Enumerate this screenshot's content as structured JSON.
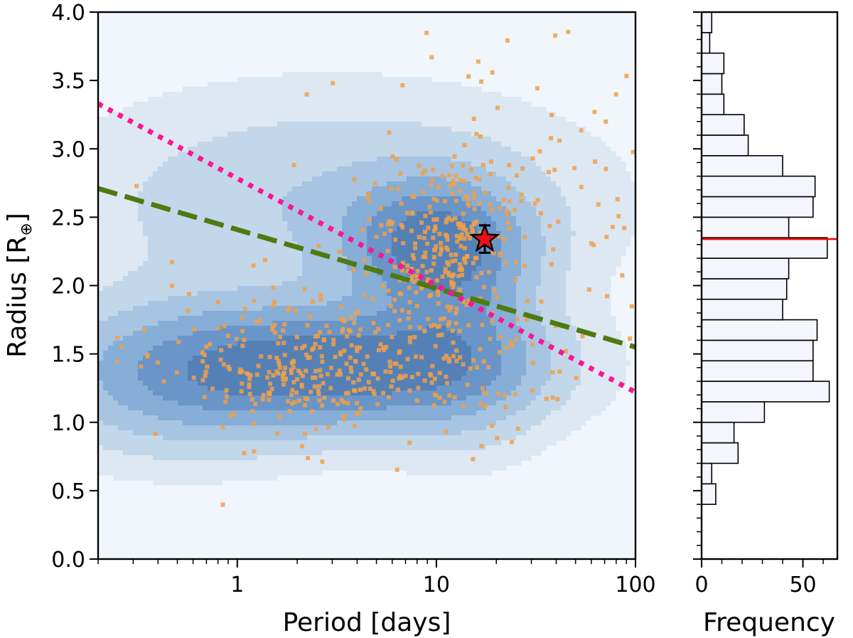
{
  "chart_data": [
    {
      "type": "scatter",
      "title": "",
      "xlabel": "Period [days]",
      "ylabel_main": "Radius [R",
      "ylabel_sub": "⊕",
      "ylabel_close": "]",
      "xscale": "log",
      "xlim": [
        0.2,
        100
      ],
      "ylim": [
        0.0,
        4.0
      ],
      "xticks": [
        {
          "value": 1,
          "label": "1"
        },
        {
          "value": 10,
          "label": "10"
        },
        {
          "value": 100,
          "label": "100"
        }
      ],
      "yticks": [
        {
          "value": 0.0,
          "label": "0.0"
        },
        {
          "value": 0.5,
          "label": "0.5"
        },
        {
          "value": 1.0,
          "label": "1.0"
        },
        {
          "value": 1.5,
          "label": "1.5"
        },
        {
          "value": 2.0,
          "label": "2.0"
        },
        {
          "value": 2.5,
          "label": "2.5"
        },
        {
          "value": 3.0,
          "label": "3.0"
        },
        {
          "value": 3.5,
          "label": "3.5"
        },
        {
          "value": 4.0,
          "label": "4.0"
        }
      ],
      "density_levels": [
        {
          "level": 1,
          "color": "#dde8f3"
        },
        {
          "level": 2,
          "color": "#c3d7ea"
        },
        {
          "level": 3,
          "color": "#a7c5e2"
        },
        {
          "level": 4,
          "color": "#86aed6"
        },
        {
          "level": 5,
          "color": "#6995c8"
        },
        {
          "level": 6,
          "color": "#5480b6"
        }
      ],
      "density_components": [
        {
          "period": 3.5,
          "radius": 1.4,
          "sigma_logp": 0.55,
          "sigma_r": 0.28,
          "weight": 1.0
        },
        {
          "period": 10,
          "radius": 2.3,
          "sigma_logp": 0.28,
          "sigma_r": 0.3,
          "weight": 0.85
        },
        {
          "period": 0.5,
          "radius": 1.35,
          "sigma_logp": 0.45,
          "sigma_r": 0.35,
          "weight": 0.5
        },
        {
          "period": 14,
          "radius": 1.6,
          "sigma_logp": 0.25,
          "sigma_r": 0.45,
          "weight": 0.35
        },
        {
          "period": 3,
          "radius": 2.6,
          "sigma_logp": 0.8,
          "sigma_r": 0.5,
          "weight": 0.25
        }
      ],
      "series": [
        {
          "name": "Known planets",
          "kind": "points",
          "color": "#f0a04b",
          "count": 750,
          "seed": 7
        },
        {
          "name": "Radius valley fit 1",
          "kind": "line",
          "style": "dashed",
          "color": "#4e7a10",
          "x": [
            0.2,
            100
          ],
          "y": [
            2.71,
            1.55
          ]
        },
        {
          "name": "Radius valley fit 2",
          "kind": "line",
          "style": "dotted",
          "color": "#ff1493",
          "x": [
            0.2,
            100
          ],
          "y": [
            3.33,
            1.22
          ]
        },
        {
          "name": "Target planet",
          "kind": "marker",
          "marker": "star",
          "color": "#e8111c",
          "x": 17.5,
          "y": 2.34,
          "yerr": [
            0.1,
            0.1
          ]
        }
      ]
    },
    {
      "type": "bar",
      "orientation": "horizontal",
      "title": "",
      "xlabel": "Frequency",
      "ylabel": "",
      "xlim": [
        0,
        67
      ],
      "ylim": [
        0.0,
        4.0
      ],
      "xticks": [
        {
          "value": 0,
          "label": "0"
        },
        {
          "value": 50,
          "label": "50"
        }
      ],
      "bin_width": 0.15,
      "bin_edges_start": 0.4,
      "values": [
        7,
        5,
        18,
        16,
        31,
        63,
        55,
        55,
        57,
        40,
        42,
        43,
        62,
        43,
        55,
        56,
        40,
        23,
        21,
        11,
        10,
        11,
        4,
        5
      ],
      "bar_fill": "#f4f5fd",
      "reference_line": {
        "y": 2.34,
        "color": "#ff0000"
      }
    }
  ]
}
